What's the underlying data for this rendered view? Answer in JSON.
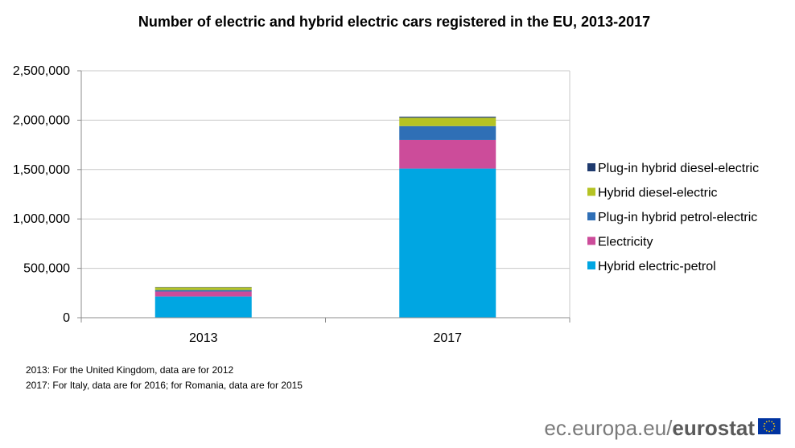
{
  "chart_data": {
    "type": "bar",
    "stacked": true,
    "title": "Number of electric and hybrid electric cars registered in the EU, 2013-2017",
    "categories": [
      "2013",
      "2017"
    ],
    "ylim": [
      0,
      2500000
    ],
    "y_ticks": [
      0,
      500000,
      1000000,
      1500000,
      2000000,
      2500000
    ],
    "y_tick_labels": [
      "0",
      "500,000",
      "1,000,000",
      "1,500,000",
      "2,000,000",
      "2,500,000"
    ],
    "grid": true,
    "legend_position": "right",
    "series": [
      {
        "name": "Hybrid electric-petrol",
        "color": "#00a6e2",
        "values": [
          215000,
          1510000
        ]
      },
      {
        "name": "Electricity",
        "color": "#cc4c9a",
        "values": [
          50000,
          290000
        ]
      },
      {
        "name": "Plug-in hybrid petrol-electric",
        "color": "#2f6fb6",
        "values": [
          15000,
          140000
        ]
      },
      {
        "name": "Hybrid diesel-electric",
        "color": "#b5c324",
        "values": [
          27000,
          85000
        ]
      },
      {
        "name": "Plug-in hybrid diesel-electric",
        "color": "#1f3a6e",
        "values": [
          3000,
          10000
        ]
      }
    ]
  },
  "legend_order": [
    4,
    3,
    2,
    1,
    0
  ],
  "footnotes": [
    "2013:  For the United Kingdom, data are for 2012",
    "2017:  For Italy, data are for 2016;  for Romania, data are for 2015"
  ],
  "branding": {
    "url": "ec.europa.eu/",
    "name": "eurostat",
    "flag_color": "#0033a0",
    "star_color": "#ffcc00"
  }
}
